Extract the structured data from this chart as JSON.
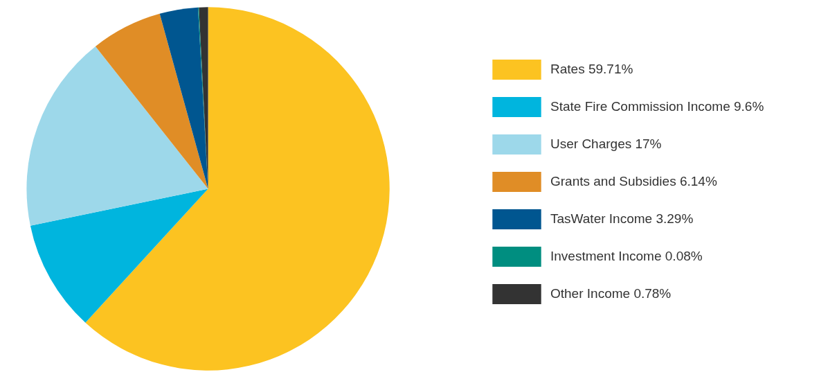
{
  "chart_data": {
    "type": "pie",
    "categories": [
      "Rates 59.71%",
      "State Fire Commission Income 9.6%",
      "User Charges 17%",
      "Grants and Subsidies 6.14%",
      "TasWater Income 3.29%",
      "Investment Income 0.08%",
      "Other Income 0.78%"
    ],
    "values": [
      59.71,
      9.6,
      17,
      6.14,
      3.29,
      0.08,
      0.78
    ],
    "colors": [
      "#fcc321",
      "#00b5de",
      "#9dd8ea",
      "#e08d26",
      "#005690",
      "#008e80",
      "#333333"
    ],
    "legend": "right"
  }
}
